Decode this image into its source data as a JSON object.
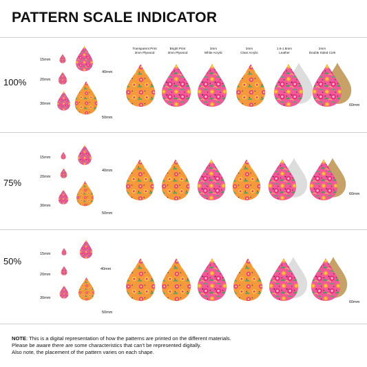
{
  "title": "PATTERN SCALE INDICATOR",
  "rows": [
    {
      "scale": "100%"
    },
    {
      "scale": "75%"
    },
    {
      "scale": "50%"
    }
  ],
  "sizes": {
    "small": "15mm",
    "medium": "20mm",
    "large": "30mm",
    "big40": "40mm",
    "big50": "50mm"
  },
  "materials": [
    {
      "line1": "Transparent Print",
      "line2": "3mm Plywood"
    },
    {
      "line1": "Bright Print",
      "line2": "3mm Plywood"
    },
    {
      "line1": "3mm",
      "line2": "White Acrylic"
    },
    {
      "line1": "3mm",
      "line2": "Clear Acrylic"
    },
    {
      "line1": "1.6-1.8mm",
      "line2": "Leather"
    },
    {
      "line1": "2mm",
      "line2": "Double Sided Cork"
    }
  ],
  "side_size": "60mm",
  "note": {
    "label": "NOTE",
    "line1": ": This is a digital representation of how the patterns are printed on the different materials.",
    "line2": "Please be aware there are some characteristics that can't be represented digitally.",
    "line3": "Also note, the placement of the pattern varies on each shape."
  },
  "colors": {
    "pink": "#e8327a",
    "orange": "#f28a2e",
    "yellow": "#f6c94a",
    "green": "#5aa25e",
    "cork": "#c9a46a",
    "leather": "#dcdcdc"
  }
}
